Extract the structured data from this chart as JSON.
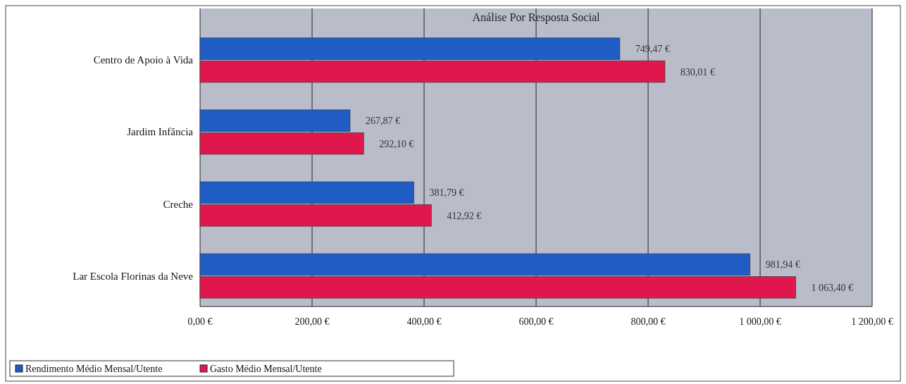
{
  "chart_data": {
    "type": "bar",
    "orientation": "horizontal",
    "title": "Análise Por Resposta Social",
    "categories": [
      "Centro de Apoio à Vida",
      "Jardim Infância",
      "Creche",
      "Lar Escola Florinas da Neve"
    ],
    "series": [
      {
        "name": "Rendimento Médio Mensal/Utente",
        "color": "#1f5cc4",
        "values": [
          749.47,
          267.87,
          381.79,
          981.94
        ],
        "value_labels": [
          "749,47 €",
          "267,87 €",
          "381,79 €",
          "981,94 €"
        ]
      },
      {
        "name": "Gasto Médio Mensal/Utente",
        "color": "#e0174c",
        "values": [
          830.01,
          292.1,
          412.92,
          1063.4
        ],
        "value_labels": [
          "830,01 €",
          "292,10 €",
          "412,92 €",
          "1 063,40 €"
        ]
      }
    ],
    "xlim": [
      0,
      1200
    ],
    "xticks": [
      {
        "value": 0,
        "label": "0,00 €"
      },
      {
        "value": 200,
        "label": "200,00 €"
      },
      {
        "value": 400,
        "label": "400,00 €"
      },
      {
        "value": 600,
        "label": "600,00 €"
      },
      {
        "value": 800,
        "label": "800,00 €"
      },
      {
        "value": 1000,
        "label": "1 000,00 €"
      },
      {
        "value": 1200,
        "label": "1 200,00 €"
      }
    ],
    "grid": "x",
    "legend": "bottom left"
  }
}
